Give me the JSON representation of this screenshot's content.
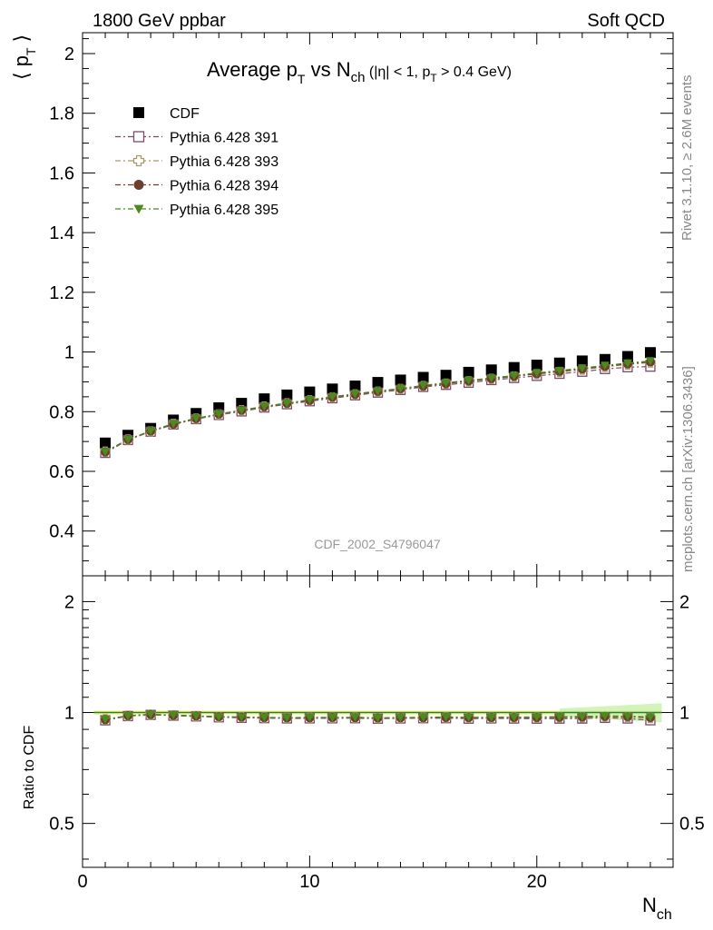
{
  "header": {
    "left": "1800 GeV ppbar",
    "right": "Soft QCD"
  },
  "side": {
    "rivet": "Rivet 3.1.10, ≥ 2.6M events",
    "mcplots": "mcplots.cern.ch [arXiv:1306.3436]"
  },
  "watermark": "CDF_2002_S4796047",
  "chart_data": {
    "type": "scatter",
    "title_parts": [
      "Average p",
      "T",
      " vs N",
      "ch",
      " (|η| < 1, p",
      "T",
      " > 0.4 GeV)"
    ],
    "ylabel_parts": [
      "⟨ p",
      "T",
      " ⟩"
    ],
    "xlabel_parts": [
      "N",
      "ch"
    ],
    "ratio_ylabel": "Ratio to CDF",
    "xlim": [
      0,
      26
    ],
    "ylim": [
      0.25,
      2.07
    ],
    "ratio_ylim": [
      0.38,
      2.35
    ],
    "xticks": [
      0,
      10,
      20
    ],
    "yticks": [
      0.4,
      0.6,
      0.8,
      1,
      1.2,
      1.4,
      1.6,
      1.8,
      2
    ],
    "yticklabels": [
      "0.4",
      "0.6",
      "0.8",
      "1",
      "1.2",
      "1.4",
      "1.6",
      "1.8",
      "2"
    ],
    "ratio_yticks": [
      0.5,
      1,
      2
    ],
    "ratio_yticklabels": [
      "0.5",
      "1",
      "2"
    ],
    "ratio_log": true,
    "legend_position": "top-left",
    "x": [
      1,
      2,
      3,
      4,
      5,
      6,
      7,
      8,
      9,
      10,
      11,
      12,
      13,
      14,
      15,
      16,
      17,
      18,
      19,
      20,
      21,
      22,
      23,
      24,
      25
    ],
    "series": [
      {
        "name": "CDF",
        "color": "#000000",
        "marker": "filled-square",
        "values": [
          0.695,
          0.721,
          0.744,
          0.772,
          0.794,
          0.813,
          0.828,
          0.843,
          0.856,
          0.866,
          0.876,
          0.886,
          0.898,
          0.906,
          0.915,
          0.922,
          0.932,
          0.94,
          0.948,
          0.956,
          0.963,
          0.97,
          0.975,
          0.985,
          0.998
        ]
      },
      {
        "name": "Pythia 6.428 391",
        "color": "#7b4a6b",
        "marker": "open-square",
        "values": [
          0.662,
          0.705,
          0.733,
          0.757,
          0.775,
          0.789,
          0.801,
          0.814,
          0.825,
          0.835,
          0.845,
          0.855,
          0.864,
          0.873,
          0.883,
          0.89,
          0.897,
          0.906,
          0.913,
          0.92,
          0.927,
          0.934,
          0.943,
          0.949,
          0.951
        ]
      },
      {
        "name": "Pythia 6.428 393",
        "color": "#a89a66",
        "marker": "open-cross",
        "values": [
          0.666,
          0.707,
          0.734,
          0.759,
          0.777,
          0.791,
          0.805,
          0.817,
          0.828,
          0.838,
          0.848,
          0.858,
          0.867,
          0.876,
          0.886,
          0.894,
          0.902,
          0.91,
          0.918,
          0.926,
          0.933,
          0.941,
          0.95,
          0.958,
          0.965
        ]
      },
      {
        "name": "Pythia 6.428 394",
        "color": "#6b3e2e",
        "marker": "filled-circle",
        "values": [
          0.665,
          0.707,
          0.735,
          0.758,
          0.777,
          0.792,
          0.805,
          0.817,
          0.828,
          0.838,
          0.849,
          0.858,
          0.868,
          0.877,
          0.886,
          0.894,
          0.903,
          0.911,
          0.919,
          0.927,
          0.935,
          0.943,
          0.952,
          0.96,
          0.967
        ]
      },
      {
        "name": "Pythia 6.428 395",
        "color": "#4c8a1e",
        "marker": "filled-triangle-down",
        "values": [
          0.666,
          0.707,
          0.736,
          0.76,
          0.778,
          0.792,
          0.805,
          0.818,
          0.829,
          0.84,
          0.85,
          0.86,
          0.869,
          0.878,
          0.888,
          0.897,
          0.905,
          0.913,
          0.921,
          0.93,
          0.938,
          0.946,
          0.955,
          0.963,
          0.97
        ]
      }
    ]
  }
}
